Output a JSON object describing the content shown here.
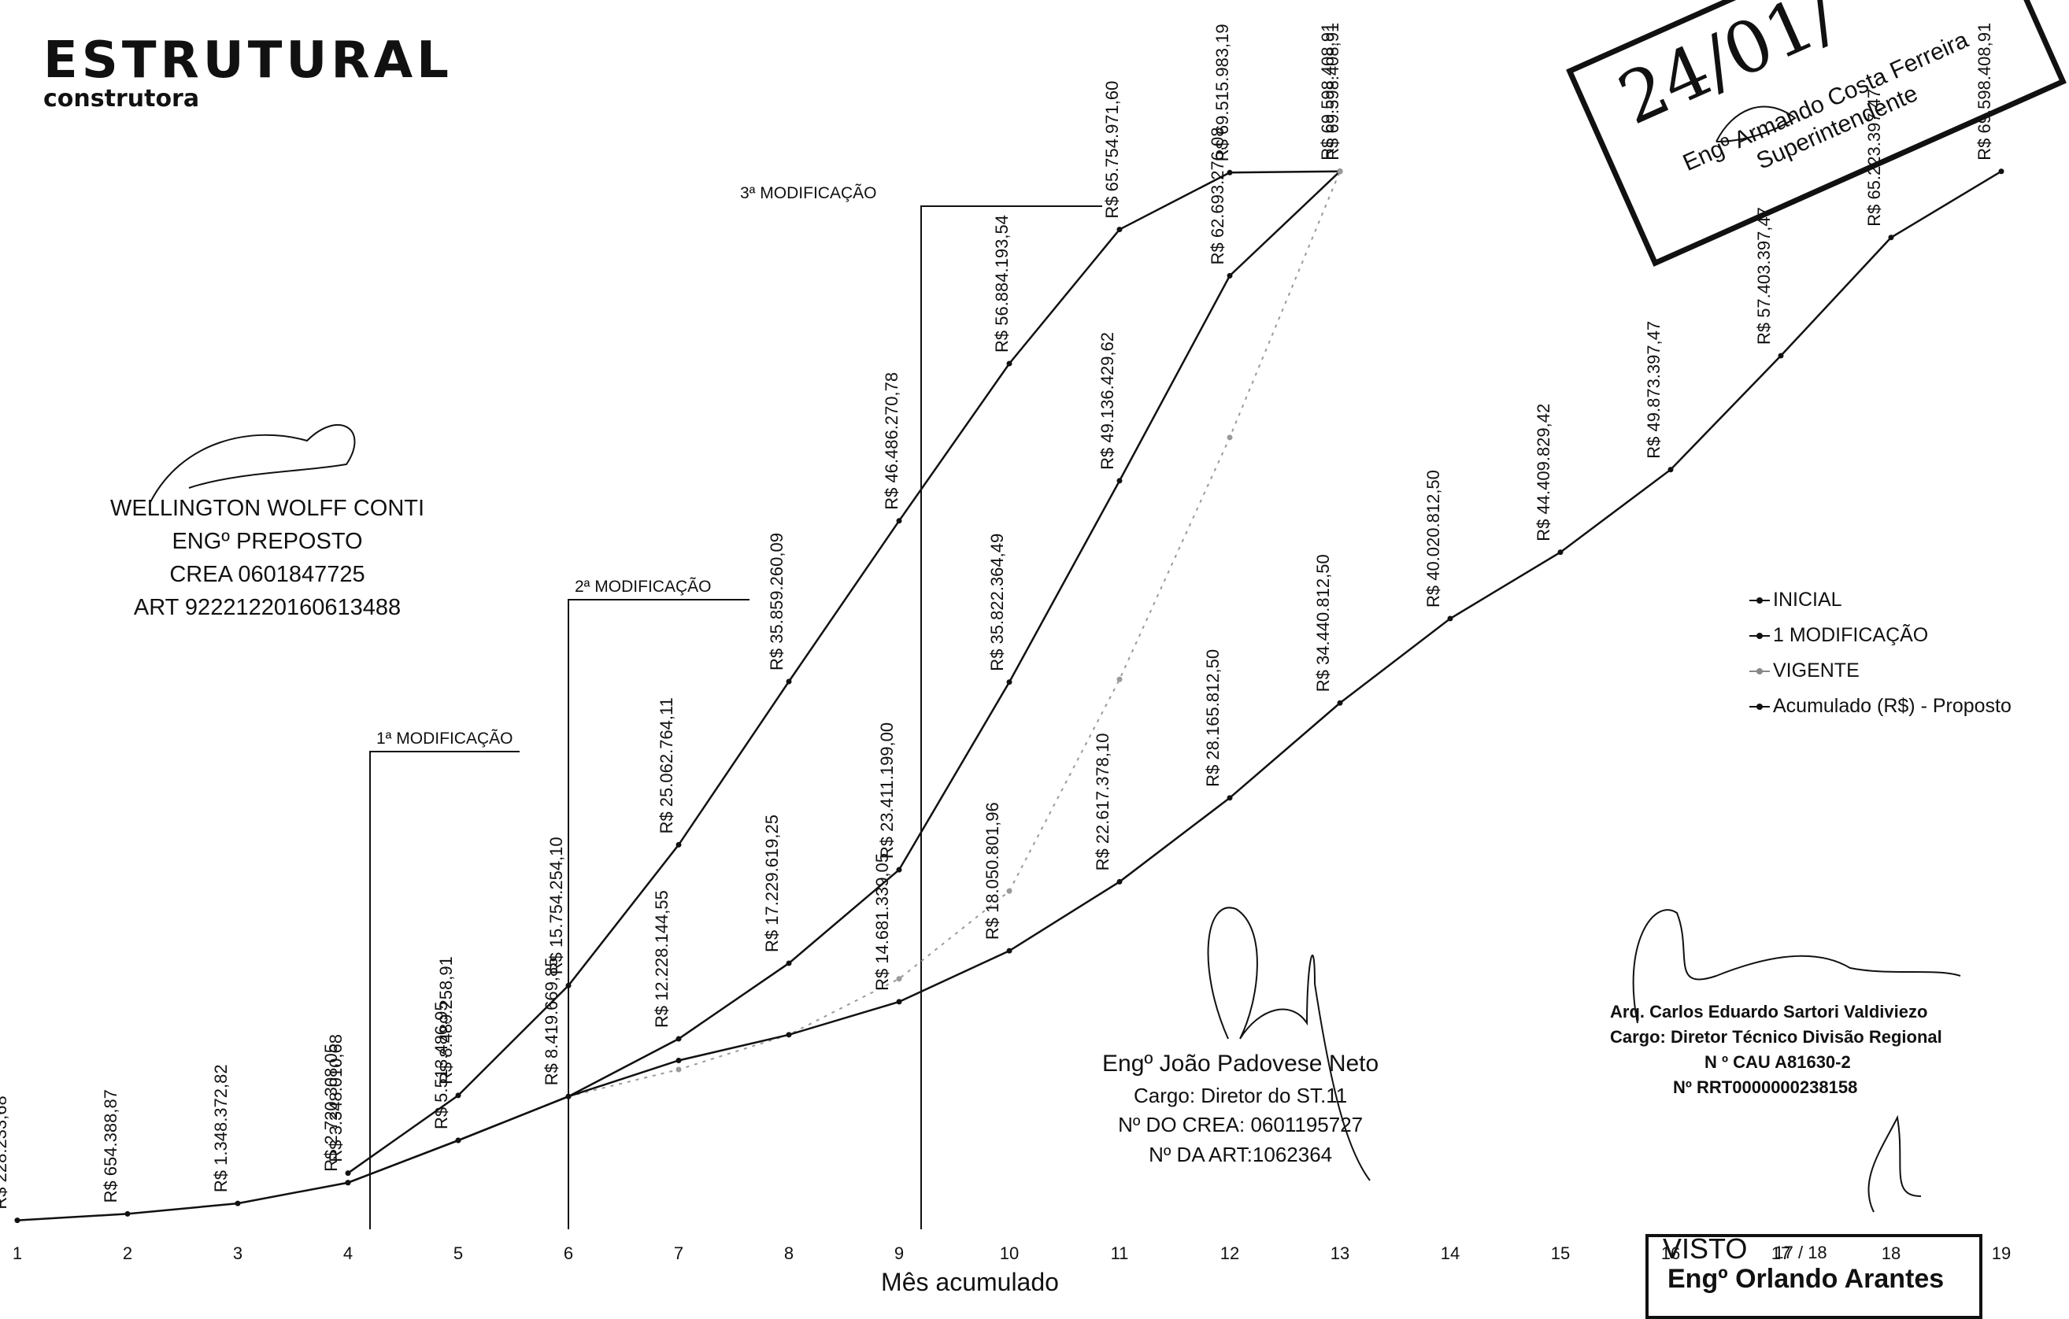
{
  "logo": {
    "main": "ESTRUTURAL",
    "sub": "construtora"
  },
  "signatures": {
    "left": {
      "name": "WELLINGTON WOLFF CONTI",
      "role": "ENGº PREPOSTO",
      "crea": "CREA 0601847725",
      "art": "ART 92221220160613488"
    },
    "middle": {
      "name": "Engº João Padovese Neto",
      "role": "Cargo: Diretor do ST.11",
      "crea": "Nº DO CREA: 0601195727",
      "art": "Nº DA ART:1062364"
    },
    "right": {
      "name": "Arq. Carlos Eduardo Sartori Valdiviezo",
      "role": "Cargo: Diretor Técnico Divisão Regional",
      "cau": "N º CAU A81630-2",
      "rrt": "Nº RRT0000000238158"
    }
  },
  "stamp": {
    "date": "24/01/",
    "name": "Engº Armando Costa Ferreira",
    "role": "Superintendente",
    "visto_label": "VISTO",
    "visto_date": "17 / 18",
    "visto_name": "Engº Orlando Arantes"
  },
  "chart_data": {
    "type": "line",
    "title": "",
    "xlabel": "Mês acumulado",
    "ylabel": "",
    "x": [
      1,
      2,
      3,
      4,
      5,
      6,
      7,
      8,
      9,
      10,
      11,
      12,
      13,
      14,
      15,
      16,
      17,
      18,
      19
    ],
    "ylim": [
      0,
      70000000
    ],
    "legend_position": "right",
    "series": [
      {
        "name": "INICIAL",
        "color": "#111111",
        "dash": "",
        "x": [
          4,
          5,
          6,
          7,
          8,
          9,
          10,
          11,
          12,
          13
        ],
        "values": [
          3348010.68,
          8489258.91,
          15754254.1,
          25062764.11,
          35859260.09,
          46486270.78,
          56884193.54,
          65754971.6,
          69515983.19,
          69598408.91
        ]
      },
      {
        "name": "1 MODIFICAÇÃO",
        "color": "#111111",
        "dash": "",
        "x": [
          4,
          5,
          6,
          7,
          8,
          9,
          10,
          11,
          12,
          13
        ],
        "values": [
          2720308.05,
          5513486.95,
          8419669.85,
          12228144.55,
          17229619.25,
          23411199.0,
          35822364.49,
          49136429.62,
          62693276.08,
          69598408.91
        ]
      },
      {
        "name": "VIGENTE",
        "color": "#9a9a9a",
        "dash": "4 7",
        "x": [
          6,
          7,
          8,
          9,
          10,
          11,
          12,
          13
        ],
        "values": [
          8419669.85,
          10200000,
          12500000,
          16200000,
          22000000,
          36000000,
          52000000,
          69598408.91
        ]
      },
      {
        "name": "Acumulado (R$) - Proposto",
        "color": "#111111",
        "dash": "",
        "x": [
          1,
          2,
          3,
          4,
          5,
          6,
          7,
          8,
          9,
          10,
          11,
          12,
          13,
          14,
          15,
          16,
          17,
          18,
          19
        ],
        "values": [
          228233.68,
          654388.87,
          1348372.82,
          2720308.05,
          5513486.95,
          8419669.85,
          10800000,
          12500000,
          14681339.05,
          18050801.96,
          22617378.1,
          28165812.5,
          34440812.5,
          40020812.5,
          44409829.42,
          49873397.47,
          57403397.47,
          65223397.47,
          69598408.91
        ]
      }
    ],
    "data_labels": [
      {
        "x": 1,
        "y": 228233.68,
        "text": "R$ 228.233,68"
      },
      {
        "x": 2,
        "y": 654388.87,
        "text": "R$ 654.388,87"
      },
      {
        "x": 3,
        "y": 1348372.82,
        "text": "R$ 1.348.372,82"
      },
      {
        "x": 4,
        "y": 2720308.05,
        "text": "R$ 2.720.308,05"
      },
      {
        "x": 4,
        "y": 3348010.68,
        "text": "R$ 3.348.010,68"
      },
      {
        "x": 5,
        "y": 5513486.95,
        "text": "R$ 5.513.486,95"
      },
      {
        "x": 5,
        "y": 8489258.91,
        "text": "R$ 8.489.258,91"
      },
      {
        "x": 6,
        "y": 8419669.85,
        "text": "R$ 8.419.669,85"
      },
      {
        "x": 6,
        "y": 15754254.1,
        "text": "R$ 15.754.254,10"
      },
      {
        "x": 7,
        "y": 12228144.55,
        "text": "R$ 12.228.144,55"
      },
      {
        "x": 7,
        "y": 25062764.11,
        "text": "R$ 25.062.764,11"
      },
      {
        "x": 8,
        "y": 17229619.25,
        "text": "R$ 17.229.619,25"
      },
      {
        "x": 8,
        "y": 35859260.09,
        "text": "R$ 35.859.260,09"
      },
      {
        "x": 9,
        "y": 14681339.05,
        "text": "R$ 14.681.339,05"
      },
      {
        "x": 9,
        "y": 23411199.0,
        "text": "R$ 23.411.199,00"
      },
      {
        "x": 9,
        "y": 46486270.78,
        "text": "R$ 46.486.270,78"
      },
      {
        "x": 10,
        "y": 18050801.96,
        "text": "R$ 18.050.801,96"
      },
      {
        "x": 10,
        "y": 35822364.49,
        "text": "R$ 35.822.364,49"
      },
      {
        "x": 10,
        "y": 56884193.54,
        "text": "R$ 56.884.193,54"
      },
      {
        "x": 11,
        "y": 22617378.1,
        "text": "R$ 22.617.378,10"
      },
      {
        "x": 11,
        "y": 49136429.62,
        "text": "R$ 49.136.429,62"
      },
      {
        "x": 11,
        "y": 65754971.6,
        "text": "R$ 65.754.971,60"
      },
      {
        "x": 12,
        "y": 28165812.5,
        "text": "R$ 28.165.812,50"
      },
      {
        "x": 12,
        "y": 62693276.08,
        "text": "R$ 62.693.276,08"
      },
      {
        "x": 12,
        "y": 69515983.19,
        "text": "R$ 69.515.983,19"
      },
      {
        "x": 13,
        "y": 34440812.5,
        "text": "R$ 34.440.812,50"
      },
      {
        "x": 13,
        "y": 69598408.91,
        "text": "R$ 69.598.408,91"
      },
      {
        "x": 13,
        "y": 69598408.91,
        "text": "R$ 69.598.408,91"
      },
      {
        "x": 14,
        "y": 40020812.5,
        "text": "R$ 40.020.812,50"
      },
      {
        "x": 15,
        "y": 44409829.42,
        "text": "R$ 44.409.829,42"
      },
      {
        "x": 16,
        "y": 49873397.47,
        "text": "R$ 49.873.397,47"
      },
      {
        "x": 17,
        "y": 57403397.47,
        "text": "R$ 57.403.397,47"
      },
      {
        "x": 18,
        "y": 65223397.47,
        "text": "R$ 65.223.397,47"
      },
      {
        "x": 19,
        "y": 69598408.91,
        "text": "R$ 69.598.408,91"
      }
    ],
    "annotations": [
      {
        "x": 4.2,
        "text": "1ª MODIFICAÇÃO"
      },
      {
        "x": 6,
        "text": "2ª MODIFICAÇÃO"
      },
      {
        "x": 9.2,
        "text": "3ª MODIFICAÇÃO"
      }
    ]
  }
}
